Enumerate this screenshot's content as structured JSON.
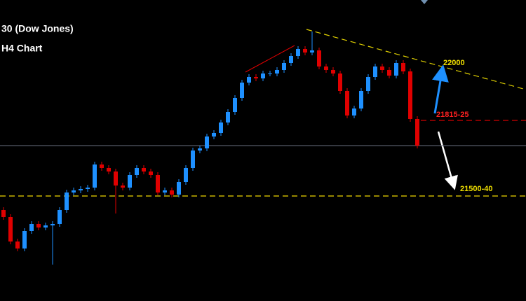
{
  "chart_data": {
    "type": "candlestick",
    "title": "30 (Dow Jones)",
    "subtitle": "H4 Chart",
    "up_color": "#1e90ff",
    "down_color": "#e00000",
    "ylim": [
      21041,
      22331
    ],
    "open": [
      21431,
      21401,
      21296,
      21266,
      21341,
      21371,
      21356,
      21365,
      21371,
      21431,
      21506,
      21515,
      21521,
      21527,
      21626,
      21611,
      21596,
      21536,
      21527,
      21581,
      21611,
      21596,
      21581,
      21506,
      21515,
      21497,
      21551,
      21611,
      21686,
      21695,
      21746,
      21761,
      21806,
      21851,
      21911,
      21977,
      22001,
      21995,
      22016,
      22016,
      22031,
      22061,
      22091,
      22121,
      22106,
      22115,
      22046,
      22031,
      22016,
      21941,
      21836,
      21866,
      21941,
      22001,
      22046,
      22031,
      22007,
      22061,
      22025,
      21821
    ],
    "high": [
      21443,
      21413,
      21308,
      21353,
      21383,
      21383,
      21377,
      21383,
      21443,
      21518,
      21527,
      21533,
      21539,
      21638,
      21638,
      21623,
      21608,
      21548,
      21593,
      21623,
      21623,
      21608,
      21593,
      21527,
      21527,
      21563,
      21623,
      21698,
      21707,
      21758,
      21773,
      21818,
      21863,
      21923,
      21989,
      22013,
      22013,
      22028,
      22028,
      22043,
      22073,
      22103,
      22133,
      22133,
      22196,
      22127,
      22058,
      22043,
      22028,
      21953,
      21878,
      21953,
      22013,
      22058,
      22058,
      22043,
      22073,
      22073,
      22037,
      21833
    ],
    "low": [
      21389,
      21284,
      21254,
      21254,
      21329,
      21344,
      21344,
      21197,
      21359,
      21419,
      21494,
      21503,
      21509,
      21515,
      21599,
      21584,
      21416,
      21515,
      21515,
      21569,
      21584,
      21569,
      21494,
      21494,
      21485,
      21485,
      21539,
      21599,
      21674,
      21683,
      21734,
      21749,
      21794,
      21839,
      21899,
      21965,
      21983,
      21983,
      22004,
      22004,
      22019,
      22049,
      22079,
      22094,
      22094,
      22034,
      22019,
      22004,
      21929,
      21824,
      21824,
      21854,
      21929,
      21989,
      22019,
      21995,
      21995,
      22013,
      21809,
      21695
    ],
    "close": [
      21401,
      21296,
      21266,
      21341,
      21371,
      21356,
      21365,
      21371,
      21431,
      21506,
      21515,
      21521,
      21527,
      21626,
      21611,
      21596,
      21536,
      21527,
      21581,
      21611,
      21596,
      21581,
      21506,
      21515,
      21497,
      21551,
      21611,
      21686,
      21695,
      21746,
      21761,
      21806,
      21851,
      21911,
      21977,
      22001,
      21995,
      22016,
      22016,
      22031,
      22061,
      22091,
      22121,
      22106,
      22115,
      22046,
      22031,
      22016,
      21941,
      21836,
      21866,
      21941,
      22001,
      22046,
      22031,
      22007,
      22061,
      22025,
      21821,
      21707
    ],
    "annotations": [
      "22000",
      "21815-25",
      "21500-40"
    ]
  }
}
